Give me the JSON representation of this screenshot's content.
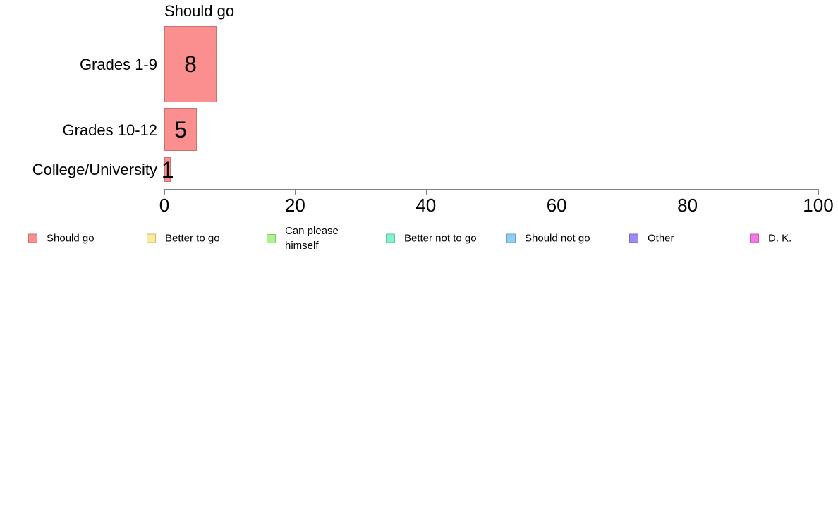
{
  "chart_data": {
    "type": "bar",
    "orientation": "horizontal",
    "title": "Should go",
    "categories": [
      "Grades 1-9",
      "Grades 10-12",
      "College/University"
    ],
    "values": [
      8,
      5,
      1
    ],
    "xlim": [
      0,
      100
    ],
    "x_ticks": [
      0,
      20,
      40,
      60,
      80,
      100
    ],
    "grid": false,
    "legend_position": "bottom",
    "bar_color": "#FB8E8E",
    "bar_border_color": "#C77171",
    "axis_color": "#808080",
    "legend": [
      {
        "label": "Should go",
        "color": "#FB8E8E",
        "border": "#C77171"
      },
      {
        "label": "Better to go",
        "color": "#FAEB9E",
        "border": "#C7BB71"
      },
      {
        "label": "Can please himself",
        "color": "#ABF48D",
        "border": "#86C46E"
      },
      {
        "label": "Better not to go",
        "color": "#83F4C9",
        "border": "#67C29F"
      },
      {
        "label": "Should not go",
        "color": "#8FCFF4",
        "border": "#6FA5C4"
      },
      {
        "label": "Other",
        "color": "#9C8BF2",
        "border": "#7A6CC2"
      },
      {
        "label": "D. K.",
        "color": "#F577E8",
        "border": "#C35CB9"
      }
    ]
  }
}
